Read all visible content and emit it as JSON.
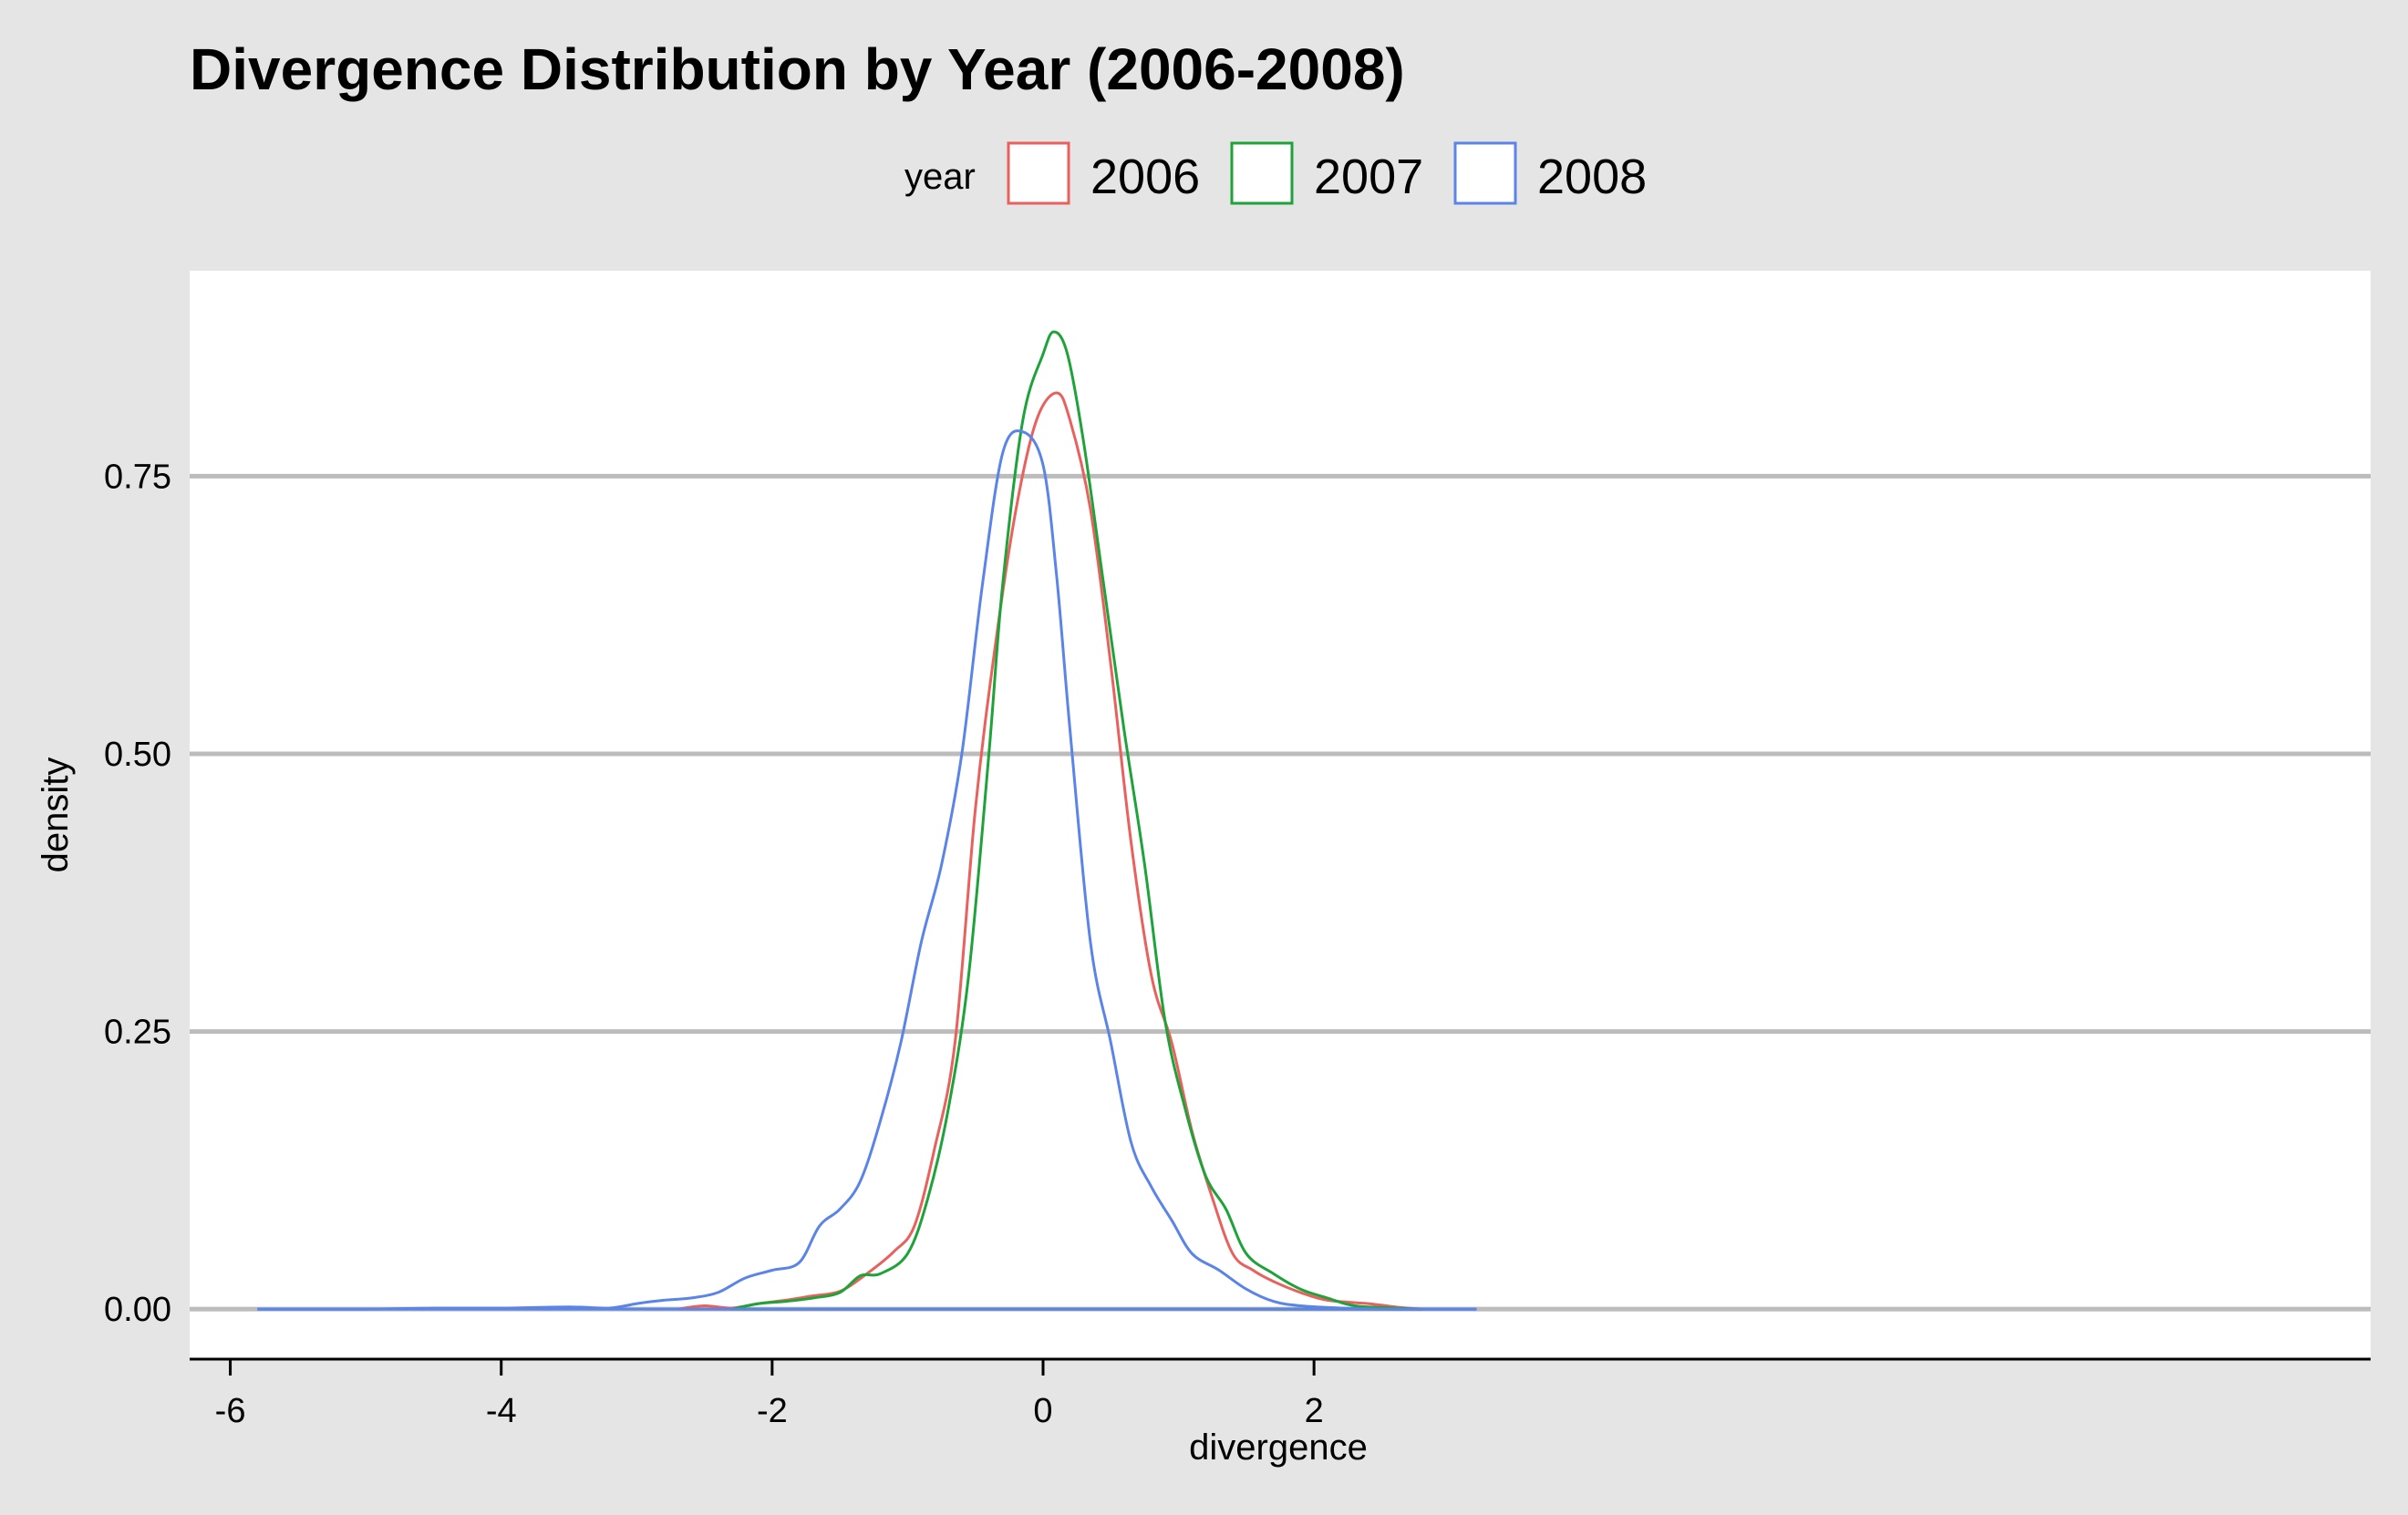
{
  "chart_data": {
    "type": "line",
    "title": "Divergence Distribution by Year (2006-2008)",
    "xlabel": "divergence",
    "ylabel": "density",
    "legend_title": "year",
    "legend_position": "top",
    "xlim": [
      -6.3,
      9.8
    ],
    "ylim": [
      -0.045,
      0.935
    ],
    "x_ticks": [
      -6,
      -4,
      -2,
      0,
      2
    ],
    "x_tick_labels": [
      "-6",
      "-4",
      "-2",
      "0",
      "2"
    ],
    "y_ticks": [
      0,
      0.25,
      0.5,
      0.75
    ],
    "y_tick_labels": [
      "0.00",
      "0.25",
      "0.50",
      "0.75"
    ],
    "grid": "horizontal major lines",
    "colors": {
      "background": "#e5e5e5",
      "panel": "#ffffff",
      "grid": "#bcbcbc",
      "2006": "#e8615d",
      "2007": "#1ea33a",
      "2008": "#5a84e8"
    },
    "series": [
      {
        "name": "2006",
        "color": "#e8615d",
        "points": [
          [
            -2.7,
            0.0
          ],
          [
            -2.5,
            0.003
          ],
          [
            -2.3,
            0.001
          ],
          [
            -2.1,
            0.005
          ],
          [
            -1.9,
            0.008
          ],
          [
            -1.7,
            0.012
          ],
          [
            -1.5,
            0.016
          ],
          [
            -1.3,
            0.032
          ],
          [
            -1.1,
            0.052
          ],
          [
            -0.95,
            0.075
          ],
          [
            -0.8,
            0.145
          ],
          [
            -0.65,
            0.24
          ],
          [
            -0.5,
            0.45
          ],
          [
            -0.35,
            0.6
          ],
          [
            -0.2,
            0.72
          ],
          [
            -0.05,
            0.8
          ],
          [
            0.1,
            0.825
          ],
          [
            0.2,
            0.8
          ],
          [
            0.35,
            0.72
          ],
          [
            0.5,
            0.58
          ],
          [
            0.65,
            0.42
          ],
          [
            0.8,
            0.3
          ],
          [
            0.95,
            0.24
          ],
          [
            1.1,
            0.16
          ],
          [
            1.25,
            0.1
          ],
          [
            1.4,
            0.05
          ],
          [
            1.55,
            0.035
          ],
          [
            1.7,
            0.025
          ],
          [
            1.9,
            0.015
          ],
          [
            2.1,
            0.008
          ],
          [
            2.4,
            0.005
          ],
          [
            2.6,
            0.002
          ],
          [
            2.8,
            0.0
          ]
        ]
      },
      {
        "name": "2007",
        "color": "#1ea33a",
        "points": [
          [
            -2.3,
            0.0
          ],
          [
            -2.1,
            0.005
          ],
          [
            -1.9,
            0.007
          ],
          [
            -1.7,
            0.01
          ],
          [
            -1.5,
            0.015
          ],
          [
            -1.35,
            0.03
          ],
          [
            -1.2,
            0.032
          ],
          [
            -1.0,
            0.05
          ],
          [
            -0.85,
            0.1
          ],
          [
            -0.7,
            0.18
          ],
          [
            -0.55,
            0.3
          ],
          [
            -0.4,
            0.5
          ],
          [
            -0.3,
            0.65
          ],
          [
            -0.15,
            0.8
          ],
          [
            0.0,
            0.86
          ],
          [
            0.08,
            0.88
          ],
          [
            0.18,
            0.86
          ],
          [
            0.3,
            0.78
          ],
          [
            0.45,
            0.65
          ],
          [
            0.6,
            0.52
          ],
          [
            0.75,
            0.4
          ],
          [
            0.9,
            0.26
          ],
          [
            1.05,
            0.18
          ],
          [
            1.2,
            0.12
          ],
          [
            1.35,
            0.09
          ],
          [
            1.5,
            0.05
          ],
          [
            1.7,
            0.032
          ],
          [
            1.9,
            0.018
          ],
          [
            2.1,
            0.01
          ],
          [
            2.3,
            0.003
          ],
          [
            2.6,
            0.001
          ],
          [
            2.8,
            0.0
          ]
        ]
      },
      {
        "name": "2008",
        "color": "#5a84e8",
        "points": [
          [
            -5.8,
            0.0
          ],
          [
            -5.0,
            0.0
          ],
          [
            -4.5,
            0.001
          ],
          [
            -4.0,
            0.001
          ],
          [
            -3.5,
            0.002
          ],
          [
            -3.2,
            0.001
          ],
          [
            -3.0,
            0.005
          ],
          [
            -2.8,
            0.008
          ],
          [
            -2.6,
            0.01
          ],
          [
            -2.4,
            0.015
          ],
          [
            -2.2,
            0.028
          ],
          [
            -2.0,
            0.035
          ],
          [
            -1.8,
            0.042
          ],
          [
            -1.65,
            0.075
          ],
          [
            -1.5,
            0.09
          ],
          [
            -1.35,
            0.115
          ],
          [
            -1.2,
            0.17
          ],
          [
            -1.05,
            0.24
          ],
          [
            -0.9,
            0.33
          ],
          [
            -0.75,
            0.4
          ],
          [
            -0.6,
            0.5
          ],
          [
            -0.45,
            0.65
          ],
          [
            -0.3,
            0.77
          ],
          [
            -0.15,
            0.79
          ],
          [
            0.0,
            0.76
          ],
          [
            0.1,
            0.66
          ],
          [
            0.2,
            0.52
          ],
          [
            0.35,
            0.33
          ],
          [
            0.5,
            0.24
          ],
          [
            0.65,
            0.15
          ],
          [
            0.8,
            0.11
          ],
          [
            0.95,
            0.08
          ],
          [
            1.1,
            0.05
          ],
          [
            1.3,
            0.035
          ],
          [
            1.5,
            0.018
          ],
          [
            1.7,
            0.007
          ],
          [
            1.9,
            0.003
          ],
          [
            2.2,
            0.001
          ],
          [
            2.6,
            0.0
          ],
          [
            3.2,
            0.0
          ]
        ]
      }
    ]
  }
}
